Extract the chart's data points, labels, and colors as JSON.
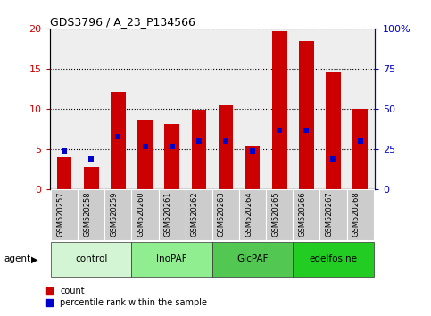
{
  "title": "GDS3796 / A_23_P134566",
  "samples": [
    "GSM520257",
    "GSM520258",
    "GSM520259",
    "GSM520260",
    "GSM520261",
    "GSM520262",
    "GSM520263",
    "GSM520264",
    "GSM520265",
    "GSM520266",
    "GSM520267",
    "GSM520268"
  ],
  "counts": [
    4.0,
    2.8,
    12.1,
    8.7,
    8.1,
    9.9,
    10.5,
    5.5,
    19.7,
    18.4,
    14.6,
    10.0
  ],
  "percentiles": [
    24,
    19,
    33,
    27,
    27,
    30,
    30,
    24,
    37,
    37,
    19,
    30
  ],
  "groups": [
    {
      "label": "control",
      "start": 0,
      "end": 2,
      "color": "#d4f5d4"
    },
    {
      "label": "InoPAF",
      "start": 3,
      "end": 5,
      "color": "#90ee90"
    },
    {
      "label": "GlcPAF",
      "start": 6,
      "end": 8,
      "color": "#52c852"
    },
    {
      "label": "edelfosine",
      "start": 9,
      "end": 11,
      "color": "#22cc22"
    }
  ],
  "bar_color": "#cc0000",
  "dot_color": "#0000cc",
  "ylim_left": [
    0,
    20
  ],
  "ylim_right": [
    0,
    100
  ],
  "yticks_left": [
    0,
    5,
    10,
    15,
    20
  ],
  "yticks_right": [
    0,
    25,
    50,
    75,
    100
  ],
  "yticklabels_right": [
    "0",
    "25",
    "50",
    "75",
    "100%"
  ],
  "bg_plot": "#eeeeee",
  "bg_sample": "#cccccc"
}
